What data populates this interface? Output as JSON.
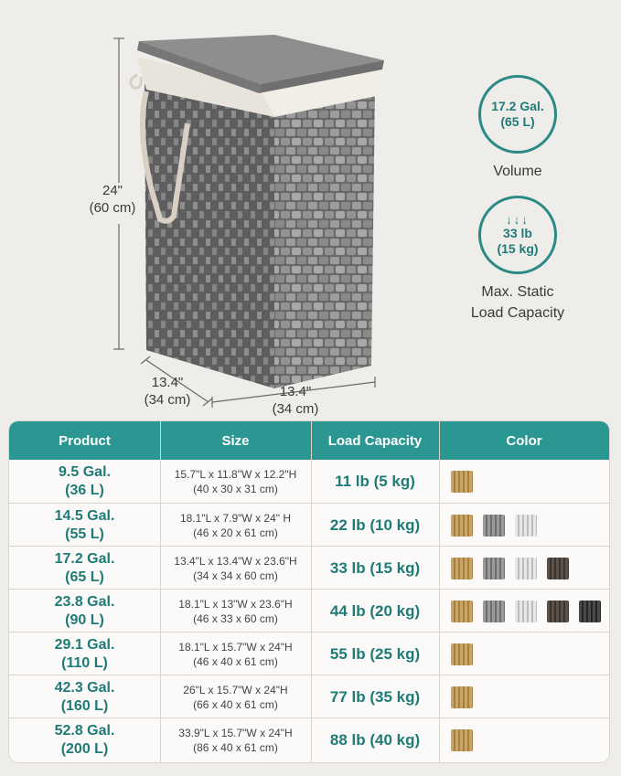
{
  "dimensions": {
    "height_in": "24\"",
    "height_cm": "(60 cm)",
    "depth_in": "13.4\"",
    "depth_cm": "(34 cm)",
    "width_in": "13.4\"",
    "width_cm": "(34 cm)"
  },
  "features": {
    "volume": {
      "line1": "17.2 Gal.",
      "line2": "(65 L)",
      "label": "Volume",
      "icon": "volume-badge"
    },
    "capacity": {
      "arrows": "↓↓↓",
      "line1": "33 lb",
      "line2": "(15 kg)",
      "label1": "Max. Static",
      "label2": "Load Capacity",
      "icon": "weight-arrows-icon"
    }
  },
  "table": {
    "headers": {
      "product": "Product",
      "size": "Size",
      "load": "Load Capacity",
      "color": "Color"
    },
    "rows": [
      {
        "prod1": "9.5 Gal.",
        "prod2": "(36 L)",
        "size1": "15.7\"L x 11.8\"W x 12.2\"H",
        "size2": "(40 x 30 x 31 cm)",
        "load": "11 lb (5 kg)",
        "colors": [
          "natural"
        ]
      },
      {
        "prod1": "14.5 Gal.",
        "prod2": "(55 L)",
        "size1": "18.1\"L x 7.9\"W x 24\" H",
        "size2": "(46 x 20 x 61 cm)",
        "load": "22 lb (10 kg)",
        "colors": [
          "natural",
          "gray",
          "white"
        ]
      },
      {
        "prod1": "17.2 Gal.",
        "prod2": "(65 L)",
        "size1": "13.4\"L x 13.4\"W x 23.6\"H",
        "size2": "(34 x 34 x 60 cm)",
        "load": "33 lb (15 kg)",
        "colors": [
          "natural",
          "gray",
          "white",
          "brown"
        ]
      },
      {
        "prod1": "23.8 Gal.",
        "prod2": "(90 L)",
        "size1": "18.1\"L x 13\"W x 23.6\"H",
        "size2": "(46 x 33 x 60 cm)",
        "load": "44 lb (20 kg)",
        "colors": [
          "natural",
          "gray",
          "white",
          "brown",
          "black"
        ]
      },
      {
        "prod1": "29.1 Gal.",
        "prod2": "(110 L)",
        "size1": "18.1\"L x 15.7\"W x 24\"H",
        "size2": "(46 x 40 x 61 cm)",
        "load": "55 lb (25 kg)",
        "colors": [
          "natural"
        ]
      },
      {
        "prod1": "42.3 Gal.",
        "prod2": "(160 L)",
        "size1": "26\"L x 15.7\"W x 24\"H",
        "size2": "(66 x 40 x 61 cm)",
        "load": "77 lb (35 kg)",
        "colors": [
          "natural"
        ]
      },
      {
        "prod1": "52.8 Gal.",
        "prod2": "(200 L)",
        "size1": "33.9\"L x 15.7\"W x 24\"H",
        "size2": "(86 x 40 x 61 cm)",
        "load": "88 lb (40 kg)",
        "colors": [
          "natural"
        ]
      }
    ]
  },
  "colors": {
    "accent": "#2b9793",
    "accent_text": "#1f7b77",
    "background": "#efedea"
  }
}
